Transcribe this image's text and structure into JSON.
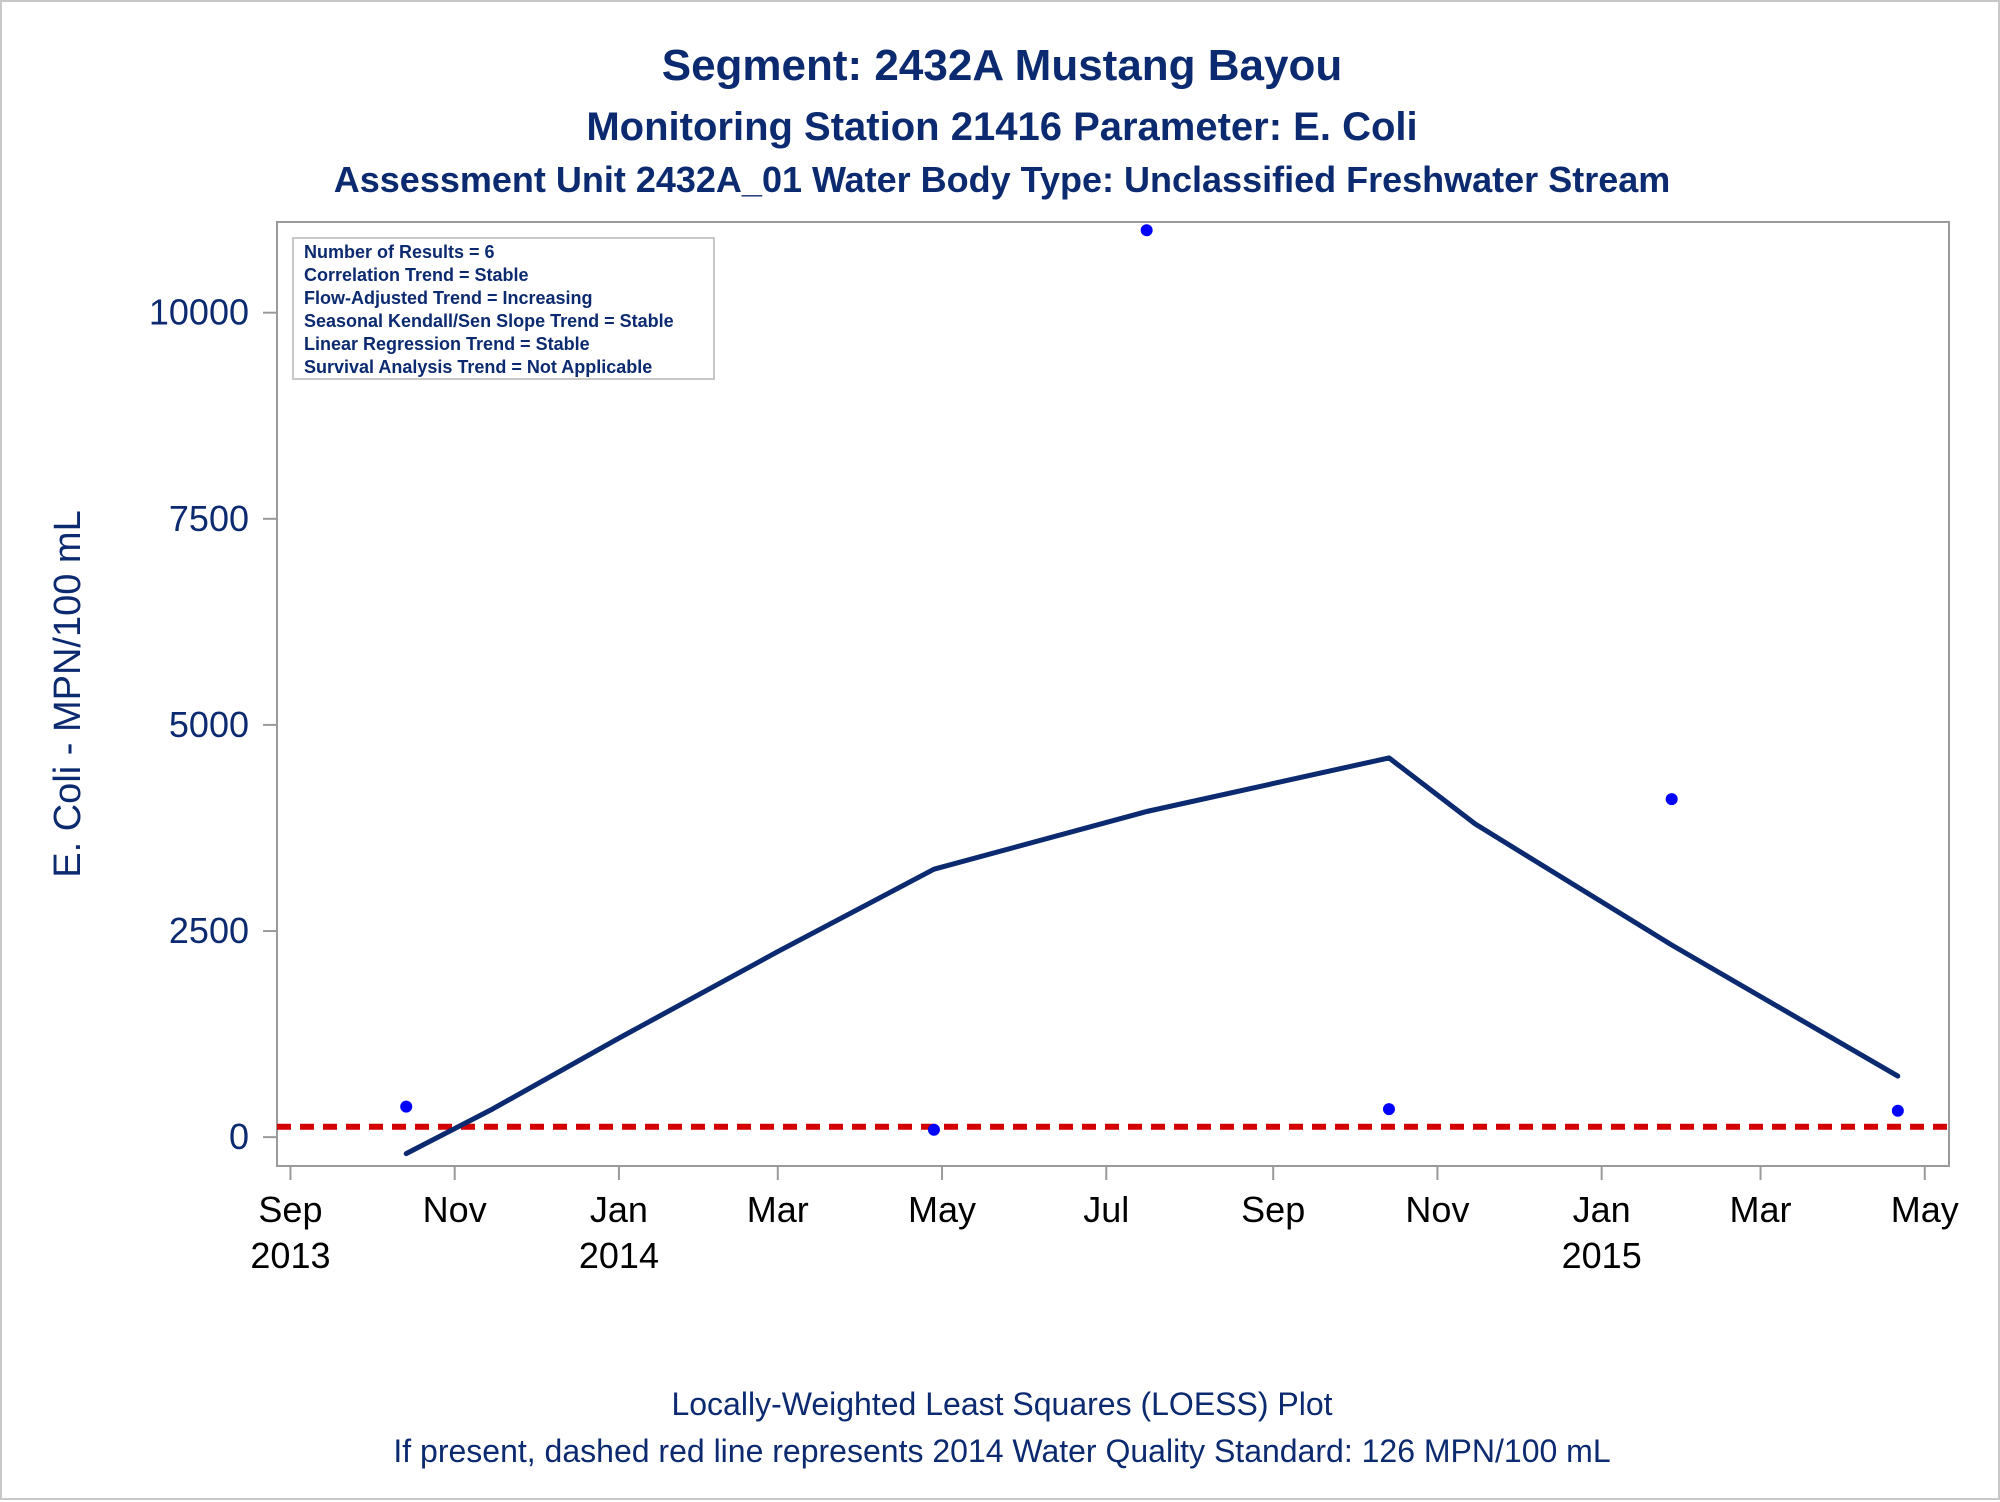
{
  "chart_data": {
    "type": "scatter",
    "title": "Segment: 2432A  Mustang Bayou",
    "subtitle": "Monitoring Station 21416 Parameter: E. Coli",
    "subtitle2": "Assessment Unit 2432A_01   Water Body Type: Unclassified Freshwater Stream",
    "ylabel": "E. Coli - MPN/100 mL",
    "xlabel": "",
    "ylim": [
      -350,
      11100
    ],
    "xlim": [
      "2013-08-27",
      "2015-05-10"
    ],
    "y_ticks": [
      0,
      2500,
      5000,
      7500,
      10000
    ],
    "x_ticks": [
      {
        "date": "2013-09-01",
        "label": "Sep",
        "year": "2013"
      },
      {
        "date": "2013-11-01",
        "label": "Nov",
        "year": ""
      },
      {
        "date": "2014-01-01",
        "label": "Jan",
        "year": "2014"
      },
      {
        "date": "2014-03-01",
        "label": "Mar",
        "year": ""
      },
      {
        "date": "2014-05-01",
        "label": "May",
        "year": ""
      },
      {
        "date": "2014-07-01",
        "label": "Jul",
        "year": ""
      },
      {
        "date": "2014-09-01",
        "label": "Sep",
        "year": ""
      },
      {
        "date": "2014-11-01",
        "label": "Nov",
        "year": ""
      },
      {
        "date": "2015-01-01",
        "label": "Jan",
        "year": "2015"
      },
      {
        "date": "2015-03-01",
        "label": "Mar",
        "year": ""
      },
      {
        "date": "2015-05-01",
        "label": "May",
        "year": ""
      }
    ],
    "points": [
      {
        "x": "2013-10-14",
        "y": 370
      },
      {
        "x": "2014-04-28",
        "y": 90
      },
      {
        "x": "2014-07-16",
        "y": 11000
      },
      {
        "x": "2014-10-14",
        "y": 340
      },
      {
        "x": "2015-01-27",
        "y": 4100
      },
      {
        "x": "2015-04-21",
        "y": 320
      }
    ],
    "loess": [
      {
        "x": "2013-10-14",
        "y": -200
      },
      {
        "x": "2013-11-15",
        "y": 340
      },
      {
        "x": "2014-01-01",
        "y": 1200
      },
      {
        "x": "2014-03-01",
        "y": 2250
      },
      {
        "x": "2014-04-28",
        "y": 3250
      },
      {
        "x": "2014-07-16",
        "y": 3950
      },
      {
        "x": "2014-10-14",
        "y": 4600
      },
      {
        "x": "2014-11-15",
        "y": 3800
      },
      {
        "x": "2015-01-27",
        "y": 2330
      },
      {
        "x": "2015-04-21",
        "y": 740
      }
    ],
    "standard_line": {
      "y": 126
    },
    "stats": [
      "Number of Results = 6",
      "Correlation Trend = Stable",
      "Flow-Adjusted Trend = Increasing",
      "Seasonal Kendall/Sen Slope Trend = Stable",
      "Linear Regression Trend = Stable",
      "Survival Analysis Trend = Not Applicable"
    ],
    "footnotes": [
      "Locally-Weighted Least Squares (LOESS) Plot",
      "If present, dashed red line represents 2014 Water Quality Standard: 126 MPN/100 mL"
    ],
    "colors": {
      "text": "#0b2a6f",
      "points": "#0000ff",
      "loess": "#0b2a6f",
      "standard": "#d40000",
      "axis": "#9a9a9a"
    }
  }
}
